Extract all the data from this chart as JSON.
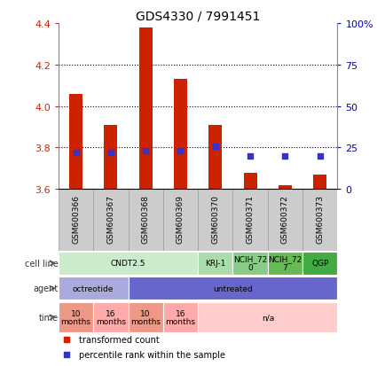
{
  "title": "GDS4330 / 7991451",
  "samples": [
    "GSM600366",
    "GSM600367",
    "GSM600368",
    "GSM600369",
    "GSM600370",
    "GSM600371",
    "GSM600372",
    "GSM600373"
  ],
  "bar_values": [
    4.06,
    3.91,
    4.38,
    4.13,
    3.91,
    3.68,
    3.62,
    3.67
  ],
  "bar_base": 3.6,
  "percentile_values": [
    22,
    22,
    23,
    23,
    26,
    20,
    20,
    20
  ],
  "left_ylim": [
    3.6,
    4.4
  ],
  "right_ylim": [
    0,
    100
  ],
  "left_yticks": [
    3.6,
    3.8,
    4.0,
    4.2,
    4.4
  ],
  "right_yticks": [
    0,
    25,
    50,
    75,
    100
  ],
  "right_yticklabels": [
    "0",
    "25",
    "50",
    "75",
    "100%"
  ],
  "grid_values": [
    3.8,
    4.0,
    4.2
  ],
  "bar_color": "#CC2200",
  "percentile_color": "#3333CC",
  "cell_line_groups": [
    {
      "label": "CNDT2.5",
      "start": 0,
      "end": 4,
      "color": "#CCEACC"
    },
    {
      "label": "KRJ-1",
      "start": 4,
      "end": 5,
      "color": "#AADDAA"
    },
    {
      "label": "NCIH_72\n0",
      "start": 5,
      "end": 6,
      "color": "#88CC88"
    },
    {
      "label": "NCIH_72\n7",
      "start": 6,
      "end": 7,
      "color": "#66BB55"
    },
    {
      "label": "QGP",
      "start": 7,
      "end": 8,
      "color": "#44AA44"
    }
  ],
  "agent_groups": [
    {
      "label": "octreotide",
      "start": 0,
      "end": 2,
      "color": "#AAAADD"
    },
    {
      "label": "untreated",
      "start": 2,
      "end": 8,
      "color": "#6666CC"
    }
  ],
  "time_groups": [
    {
      "label": "10\nmonths",
      "start": 0,
      "end": 1,
      "color": "#EE9988"
    },
    {
      "label": "16\nmonths",
      "start": 1,
      "end": 2,
      "color": "#FFAAAA"
    },
    {
      "label": "10\nmonths",
      "start": 2,
      "end": 3,
      "color": "#EE9988"
    },
    {
      "label": "16\nmonths",
      "start": 3,
      "end": 4,
      "color": "#FFAAAA"
    },
    {
      "label": "n/a",
      "start": 4,
      "end": 8,
      "color": "#FFCCCC"
    }
  ],
  "row_labels": [
    "cell line",
    "agent",
    "time"
  ],
  "legend_items": [
    {
      "label": "transformed count",
      "color": "#CC2200",
      "marker": "s"
    },
    {
      "label": "percentile rank within the sample",
      "color": "#3333CC",
      "marker": "s"
    }
  ],
  "sample_bg_color": "#CCCCCC",
  "sample_border_color": "#999999",
  "left_tick_color": "#CC2200",
  "right_tick_color": "#0000CC",
  "chart_border_color": "#888888"
}
